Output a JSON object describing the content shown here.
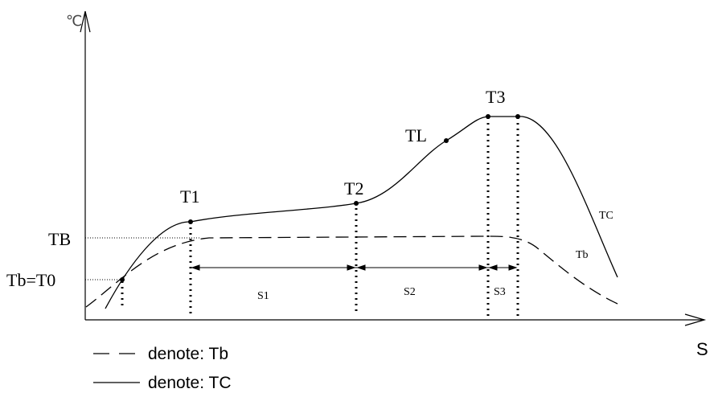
{
  "chart_data": {
    "type": "line",
    "ylabel": "℃",
    "xlabel": "S",
    "grid": false,
    "legend_position": "bottom-left",
    "y_levels": {
      "TB": "TB",
      "T0": "Tb=T0"
    },
    "points": {
      "T1": "T1",
      "T2": "T2",
      "TL": "TL",
      "T3": "T3"
    },
    "segments": [
      "S1",
      "S2",
      "S3"
    ],
    "series": [
      {
        "name": "Tb",
        "style": "dashed",
        "label": "Tb"
      },
      {
        "name": "TC",
        "style": "solid",
        "label": "TC"
      }
    ]
  },
  "legend": {
    "dashed_label": "denote: Tb",
    "solid_label": "denote: TC"
  }
}
